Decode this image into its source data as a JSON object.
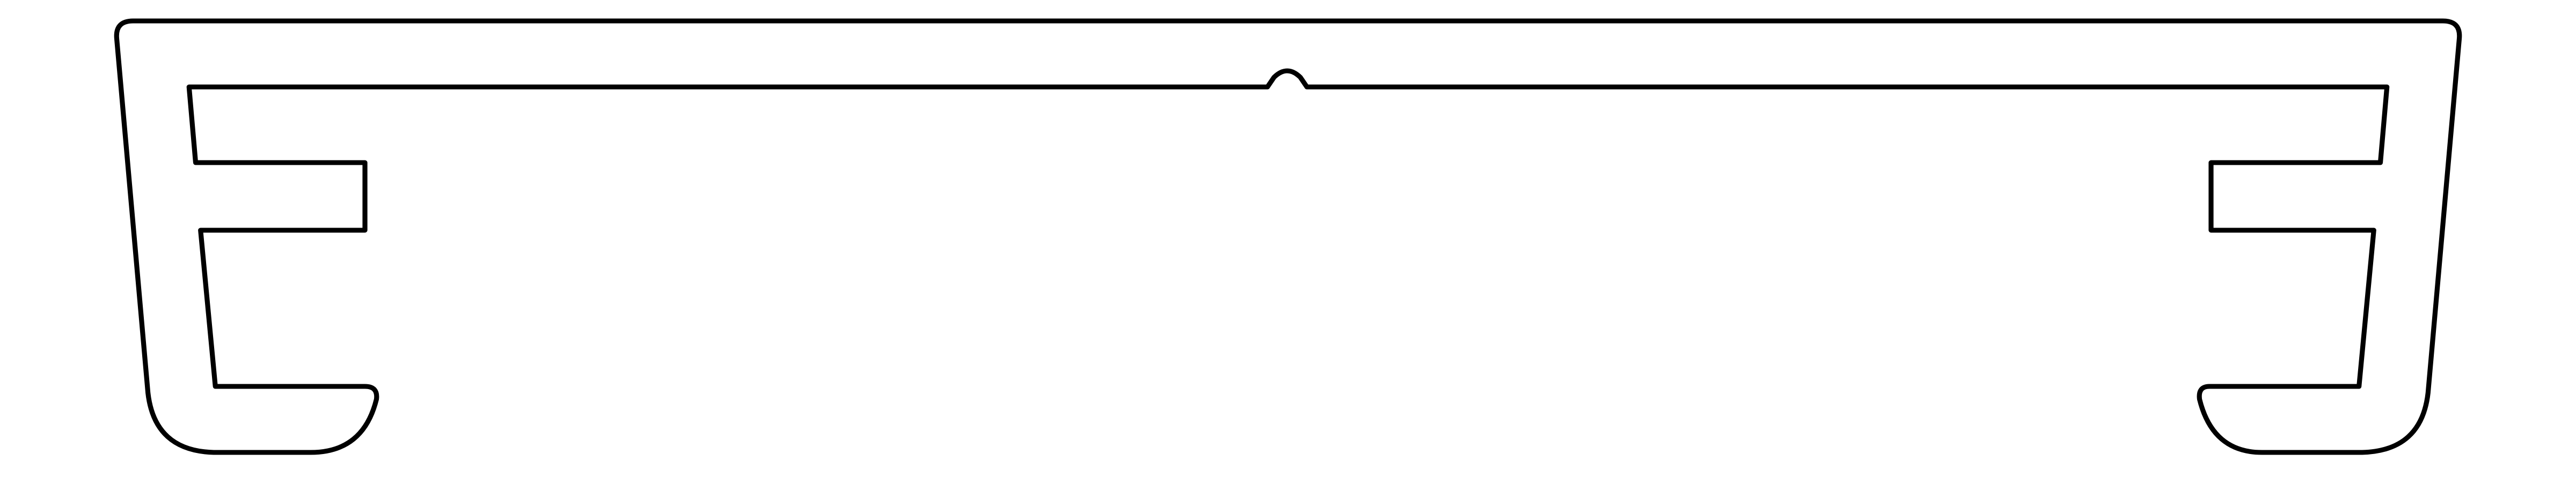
{
  "drawing": {
    "description_text": "",
    "colors": {
      "background": "#ffffff",
      "stroke": "#000000"
    }
  }
}
